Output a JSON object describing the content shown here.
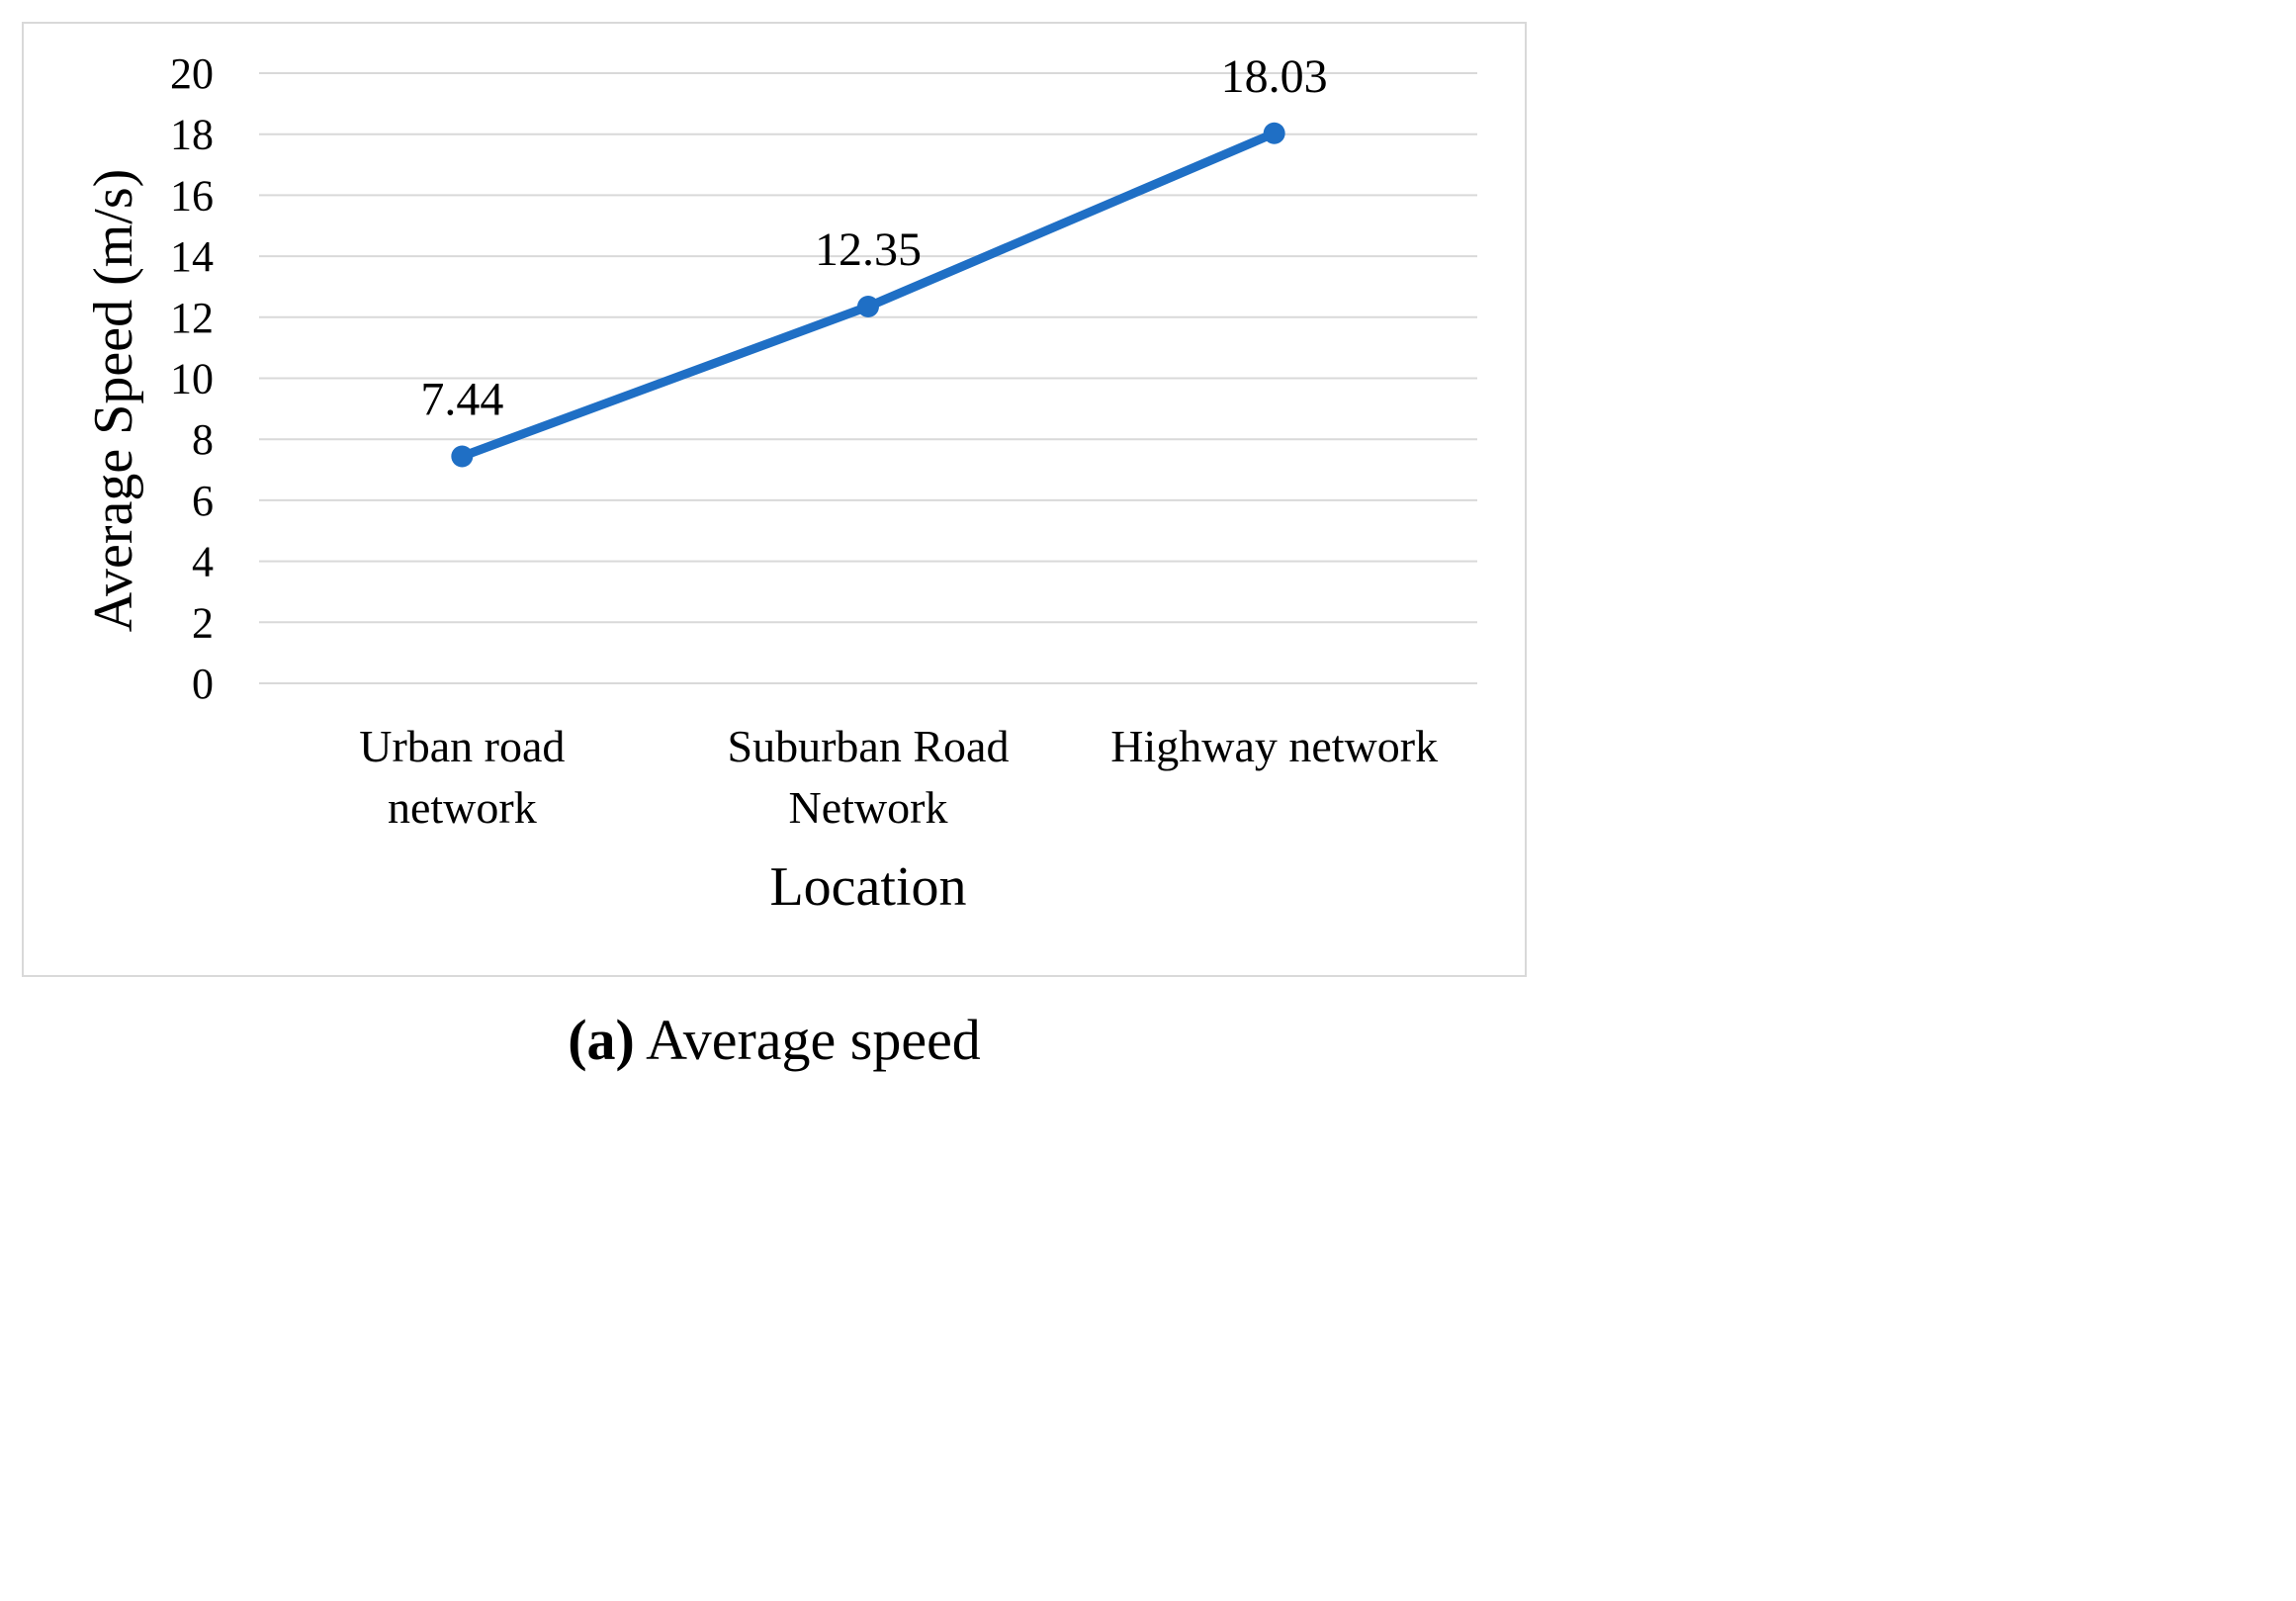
{
  "chart_data": {
    "type": "line",
    "title": "",
    "xlabel": "Location",
    "ylabel": "Average Speed (m/s)",
    "categories": [
      [
        "Urban road",
        "network"
      ],
      [
        "Suburban Road",
        "Network"
      ],
      [
        "Highway network"
      ]
    ],
    "series": [
      {
        "name": "",
        "values": [
          7.44,
          12.35,
          18.03
        ],
        "data_labels": [
          "7.44",
          "12.35",
          "18.03"
        ],
        "color": "#1f6fc5"
      }
    ],
    "ylim": [
      0,
      20
    ],
    "yticks": [
      "0",
      "2",
      "4",
      "6",
      "8",
      "10",
      "12",
      "14",
      "16",
      "18",
      "20"
    ],
    "grid": true,
    "legend": "none"
  },
  "caption": {
    "tag": "(a)",
    "text": " Average speed"
  }
}
